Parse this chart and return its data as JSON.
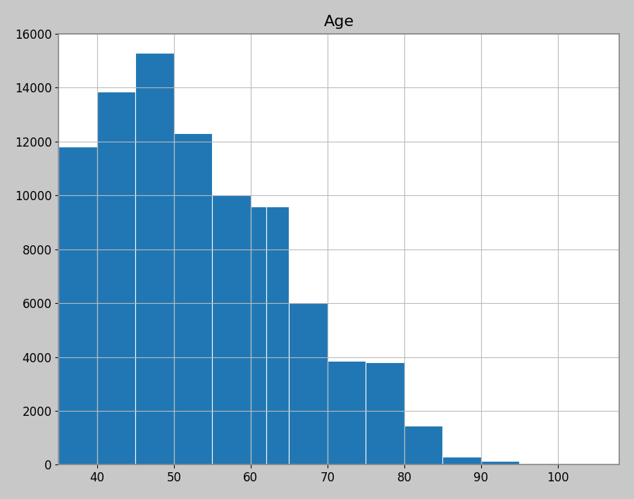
{
  "title": "Age",
  "bar_color": "#2077b4",
  "bar_edgecolor": "white",
  "ylim": [
    0,
    16000
  ],
  "xlim": [
    35,
    108
  ],
  "yticks": [
    0,
    2000,
    4000,
    6000,
    8000,
    10000,
    12000,
    14000,
    16000
  ],
  "xticks": [
    40,
    50,
    60,
    70,
    80,
    90,
    100
  ],
  "grid": true,
  "bin_edges": [
    35,
    40,
    45,
    50,
    55,
    60,
    62,
    65,
    70,
    75,
    80,
    85,
    90,
    95,
    100,
    105
  ],
  "bin_heights": [
    11800,
    13850,
    15300,
    12300,
    10000,
    9600,
    9600,
    6000,
    3850,
    3800,
    1450,
    300,
    150,
    50,
    20
  ],
  "title_fontsize": 16,
  "tick_fontsize": 12,
  "background_color": "#ffffff",
  "outer_background": "#c8c8c8",
  "frame_color": "#888888"
}
